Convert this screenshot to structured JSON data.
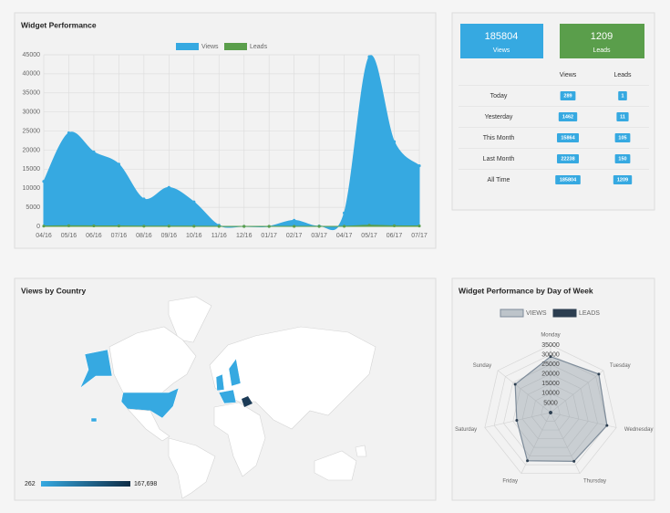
{
  "chart_data": [
    {
      "type": "area",
      "title": "Widget Performance",
      "categories": [
        "04/16",
        "05/16",
        "06/16",
        "07/16",
        "08/16",
        "09/16",
        "10/16",
        "11/16",
        "12/16",
        "01/17",
        "02/17",
        "03/17",
        "04/17",
        "05/17",
        "06/17",
        "07/17"
      ],
      "series": [
        {
          "name": "Views",
          "color": "#36a9e1",
          "values": [
            11800,
            24500,
            19500,
            16300,
            7200,
            10200,
            6400,
            300,
            0,
            0,
            1600,
            100,
            3500,
            44500,
            22200,
            15900
          ]
        },
        {
          "name": "Leads",
          "color": "#5a9e4b",
          "values": [
            80,
            160,
            130,
            110,
            50,
            70,
            40,
            2,
            0,
            0,
            10,
            1,
            25,
            290,
            150,
            110
          ]
        }
      ],
      "ylim": [
        0,
        45000
      ],
      "yticks": [
        0,
        5000,
        10000,
        15000,
        20000,
        25000,
        30000,
        35000,
        40000,
        45000
      ],
      "grid": true,
      "legend": "top"
    },
    {
      "type": "radar",
      "title": "Widget Performance by Day of Week",
      "categories": [
        "Monday",
        "Tuesday",
        "Wednesday",
        "Thursday",
        "Friday",
        "Saturday",
        "Sunday"
      ],
      "series": [
        {
          "name": "VIEWS",
          "color": "#7d8b99",
          "values": [
            29000,
            32000,
            30000,
            28000,
            27700,
            18000,
            23500
          ]
        },
        {
          "name": "LEADS",
          "color": "#2c3e50",
          "values": [
            180,
            190,
            170,
            175,
            165,
            150,
            179
          ]
        }
      ],
      "ylim": [
        0,
        35000
      ],
      "yticks": [
        5000,
        10000,
        15000,
        20000,
        25000,
        30000,
        35000
      ],
      "legend": "top"
    }
  ],
  "stats": {
    "views_total": 185804,
    "views_label": "Views",
    "leads_total": 1209,
    "leads_label": "Leads",
    "columns": [
      "Views",
      "Leads"
    ],
    "rows": [
      {
        "label": "Today",
        "views": 289,
        "leads": 1
      },
      {
        "label": "Yesterday",
        "views": 1462,
        "leads": 11
      },
      {
        "label": "This Month",
        "views": 15864,
        "leads": 105
      },
      {
        "label": "Last Month",
        "views": 22238,
        "leads": 150
      },
      {
        "label": "All Time",
        "views": 185804,
        "leads": 1209
      }
    ]
  },
  "map": {
    "title": "Views by Country",
    "scale_min": "262",
    "scale_max": "167,698"
  }
}
